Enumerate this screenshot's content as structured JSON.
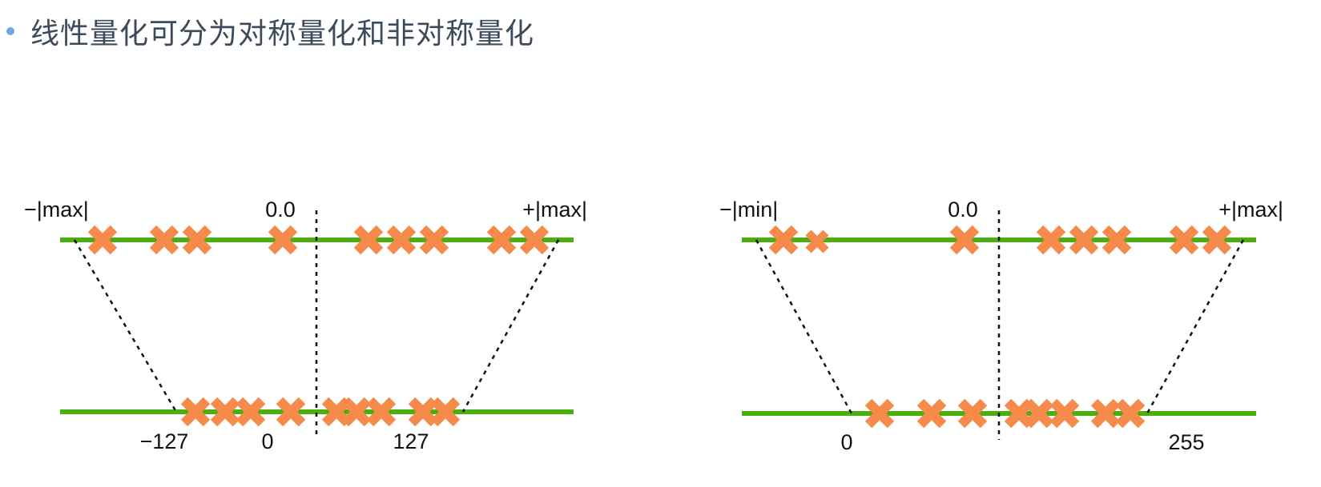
{
  "slide": {
    "title": "线性量化可分为对称量化和非对称量化"
  },
  "colors": {
    "axis_line": "#4caf10",
    "marker": "#f58a4b",
    "bullet": "#6fa8dc",
    "title_text": "#3c4a5e"
  },
  "icons": {
    "bullet": "bullet-dot-icon",
    "marker": "cross-marker-icon"
  },
  "symmetric": {
    "top_left_label": "−|max|",
    "top_center_label": "0.0",
    "top_right_label": "+|max|",
    "bottom_labels": [
      "−127",
      "0",
      "127"
    ]
  },
  "asymmetric": {
    "top_left_label": "−|min|",
    "top_center_label": "0.0",
    "top_right_label": "+|max|",
    "bottom_labels": [
      "0",
      "255"
    ]
  }
}
